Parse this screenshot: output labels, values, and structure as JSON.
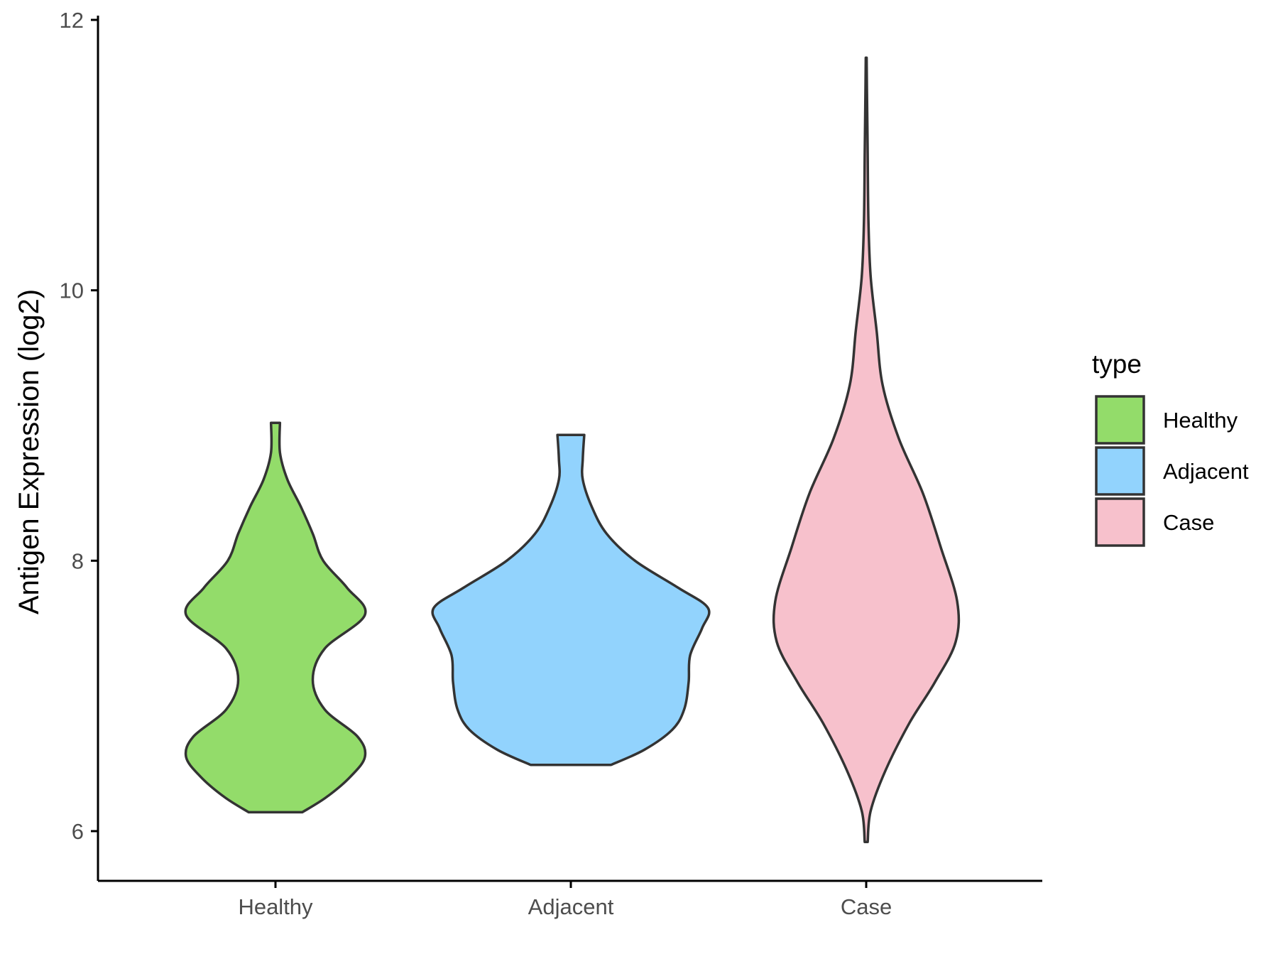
{
  "chart_data": {
    "type": "violin",
    "xlabel": "",
    "ylabel": "Antigen Expression (log2)",
    "ylim": [
      5.65,
      12.05
    ],
    "yticks": [
      6,
      8,
      10,
      12
    ],
    "categories": [
      "Healthy",
      "Adjacent",
      "Case"
    ],
    "legend": {
      "title": "type",
      "position": "right",
      "entries": [
        "Healthy",
        "Adjacent",
        "Case"
      ]
    },
    "grid": false,
    "outline_color": "#333333",
    "series": [
      {
        "name": "Healthy",
        "color": "#93dc6a",
        "min": 6.14,
        "max": 9.02,
        "profile": [
          [
            6.14,
            0.18
          ],
          [
            6.25,
            0.34
          ],
          [
            6.4,
            0.5
          ],
          [
            6.55,
            0.6
          ],
          [
            6.7,
            0.55
          ],
          [
            6.9,
            0.33
          ],
          [
            7.12,
            0.25
          ],
          [
            7.35,
            0.33
          ],
          [
            7.6,
            0.6
          ],
          [
            7.8,
            0.48
          ],
          [
            8.0,
            0.32
          ],
          [
            8.2,
            0.25
          ],
          [
            8.4,
            0.17
          ],
          [
            8.6,
            0.08
          ],
          [
            8.8,
            0.03
          ],
          [
            9.02,
            0.03
          ]
        ]
      },
      {
        "name": "Adjacent",
        "color": "#92d3fd",
        "min": 6.49,
        "max": 8.93,
        "profile": [
          [
            6.49,
            0.27
          ],
          [
            6.6,
            0.49
          ],
          [
            6.75,
            0.68
          ],
          [
            6.9,
            0.76
          ],
          [
            7.1,
            0.79
          ],
          [
            7.3,
            0.8
          ],
          [
            7.5,
            0.88
          ],
          [
            7.65,
            0.92
          ],
          [
            7.8,
            0.72
          ],
          [
            8.0,
            0.43
          ],
          [
            8.2,
            0.24
          ],
          [
            8.4,
            0.14
          ],
          [
            8.6,
            0.08
          ],
          [
            8.75,
            0.08
          ],
          [
            8.93,
            0.09
          ]
        ]
      },
      {
        "name": "Case",
        "color": "#f7c1cc",
        "min": 5.92,
        "max": 11.72,
        "profile": [
          [
            5.92,
            0.01
          ],
          [
            6.15,
            0.03
          ],
          [
            6.45,
            0.13
          ],
          [
            6.8,
            0.29
          ],
          [
            7.1,
            0.46
          ],
          [
            7.4,
            0.6
          ],
          [
            7.7,
            0.61
          ],
          [
            8.1,
            0.5
          ],
          [
            8.5,
            0.38
          ],
          [
            8.9,
            0.22
          ],
          [
            9.3,
            0.11
          ],
          [
            9.7,
            0.07
          ],
          [
            10.1,
            0.03
          ],
          [
            10.5,
            0.015
          ],
          [
            11.0,
            0.01
          ],
          [
            11.5,
            0.005
          ],
          [
            11.72,
            0.003
          ]
        ]
      }
    ]
  }
}
